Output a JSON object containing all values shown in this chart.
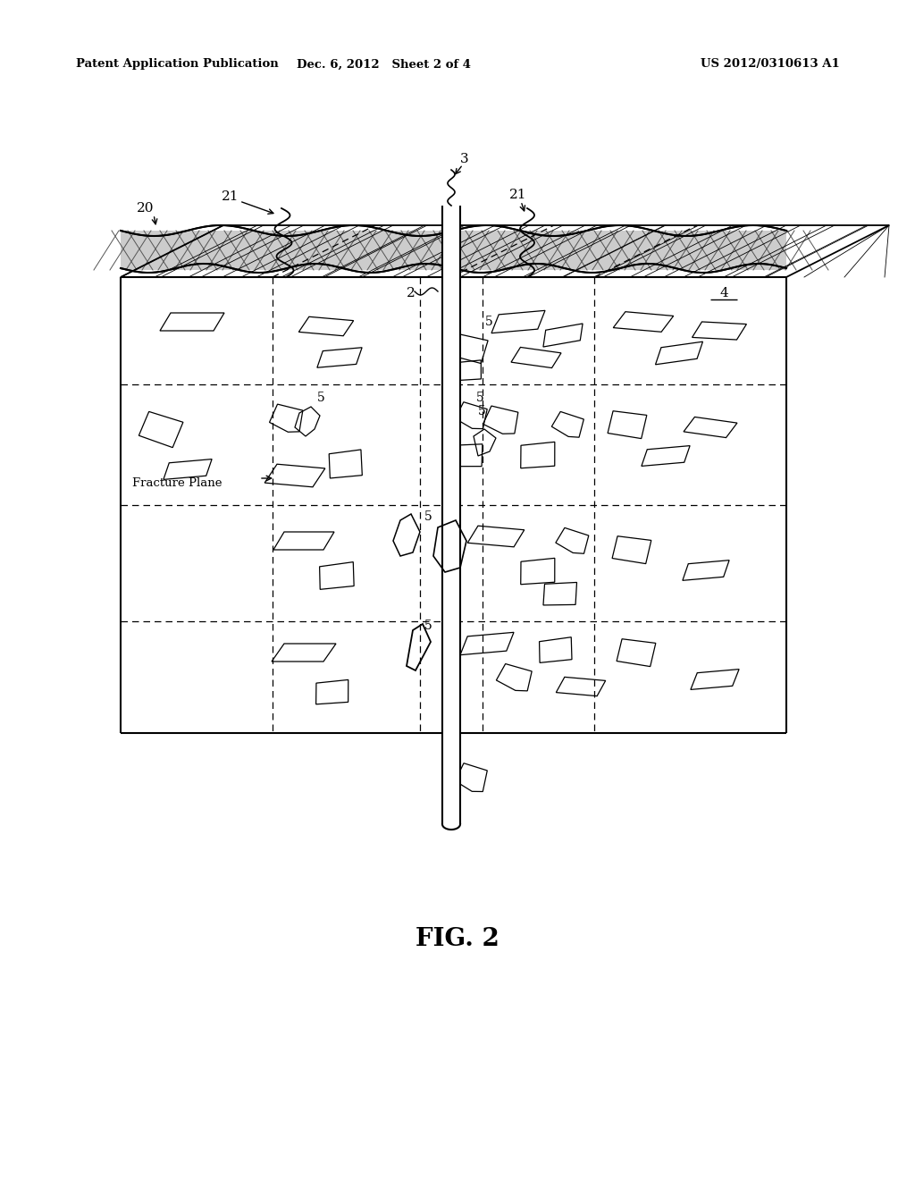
{
  "header_left": "Patent Application Publication",
  "header_mid": "Dec. 6, 2012   Sheet 2 of 4",
  "header_right": "US 2012/0310613 A1",
  "figure_label": "FIG. 2",
  "bg": "#ffffff",
  "lc": "#000000"
}
